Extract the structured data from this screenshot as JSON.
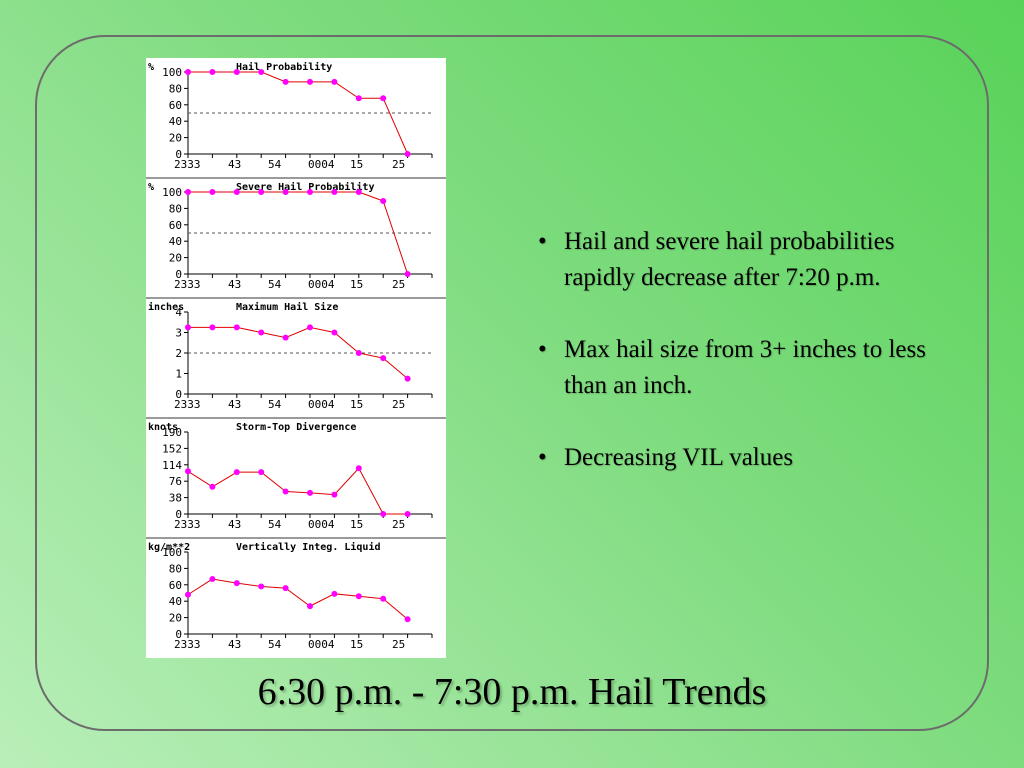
{
  "slide": {
    "title": "6:30 p.m. - 7:30 p.m. Hail Trends",
    "bullets": [
      "Hail and severe hail probabilities rapidly decrease after 7:20 p.m.",
      "Max hail size from 3+ inches to less than an inch.",
      "Decreasing VIL values"
    ]
  },
  "colors": {
    "series_line": "#e00000",
    "series_marker": "#ff00ff",
    "axis": "#000000",
    "threshold": "#555555"
  },
  "chart_data": [
    {
      "type": "line",
      "title": "Hail Probability",
      "ylabel": "%",
      "x_tick_labels": [
        "2333",
        "43",
        "54",
        "0004",
        "15",
        "25"
      ],
      "y_ticks": [
        "0",
        "20",
        "40",
        "60",
        "80",
        "100"
      ],
      "ylim": [
        0,
        100
      ],
      "threshold": 50,
      "series": [
        {
          "x": [
            0,
            1,
            2,
            3,
            4,
            5,
            6,
            7,
            8,
            9
          ],
          "values": [
            100,
            100,
            100,
            100,
            88,
            88,
            88,
            68,
            68,
            0
          ]
        }
      ]
    },
    {
      "type": "line",
      "title": "Severe Hail Probability",
      "ylabel": "%",
      "x_tick_labels": [
        "2333",
        "43",
        "54",
        "0004",
        "15",
        "25"
      ],
      "y_ticks": [
        "0",
        "20",
        "40",
        "60",
        "80",
        "100"
      ],
      "ylim": [
        0,
        100
      ],
      "threshold": 50,
      "series": [
        {
          "x": [
            0,
            1,
            2,
            3,
            4,
            5,
            6,
            7,
            8,
            9
          ],
          "values": [
            100,
            100,
            100,
            100,
            100,
            100,
            100,
            100,
            89,
            0
          ]
        }
      ]
    },
    {
      "type": "line",
      "title": "Maximum Hail Size",
      "ylabel": "inches",
      "x_tick_labels": [
        "2333",
        "43",
        "54",
        "0004",
        "15",
        "25"
      ],
      "y_ticks": [
        "0",
        "1",
        "2",
        "3",
        "4"
      ],
      "ylim": [
        0,
        4
      ],
      "threshold": 2,
      "series": [
        {
          "x": [
            0,
            1,
            2,
            3,
            4,
            5,
            6,
            7,
            8,
            9
          ],
          "values": [
            3.25,
            3.25,
            3.25,
            3.0,
            2.75,
            3.25,
            3.0,
            2.0,
            1.75,
            0.75
          ]
        }
      ]
    },
    {
      "type": "line",
      "title": "Storm-Top Divergence",
      "ylabel": "knots",
      "x_tick_labels": [
        "2333",
        "43",
        "54",
        "0004",
        "15",
        "25"
      ],
      "y_ticks": [
        "0",
        "38",
        "76",
        "114",
        "152",
        "190"
      ],
      "ylim": [
        0,
        190
      ],
      "threshold": null,
      "series": [
        {
          "x": [
            0,
            1,
            2,
            3,
            4,
            5,
            6,
            7,
            8,
            9
          ],
          "values": [
            99,
            63,
            97,
            97,
            52,
            49,
            45,
            106,
            0,
            0
          ]
        }
      ]
    },
    {
      "type": "line",
      "title": "Vertically Integ. Liquid",
      "ylabel": "kg/m**2",
      "x_tick_labels": [
        "2333",
        "43",
        "54",
        "0004",
        "15",
        "25"
      ],
      "y_ticks": [
        "0",
        "20",
        "40",
        "60",
        "80",
        "100"
      ],
      "ylim": [
        0,
        100
      ],
      "threshold": null,
      "series": [
        {
          "x": [
            0,
            1,
            2,
            3,
            4,
            5,
            6,
            7,
            8,
            9
          ],
          "values": [
            48,
            67,
            62,
            58,
            56,
            34,
            49,
            46,
            43,
            18
          ]
        }
      ]
    }
  ]
}
